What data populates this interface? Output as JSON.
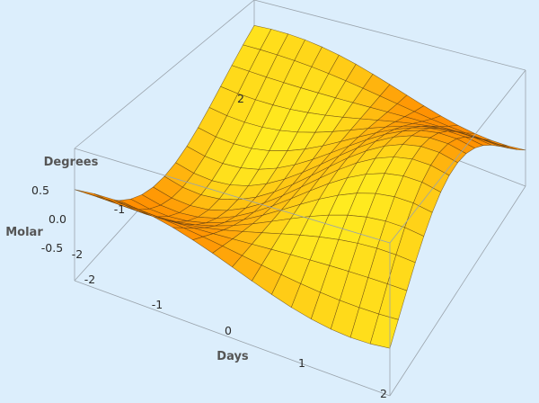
{
  "chart_data": {
    "type": "surface3d",
    "function": "z = sin(x) * cos(y)",
    "xlabel": "Days",
    "ylabel": "Degrees",
    "zlabel": "Molar",
    "x_range": [
      -2,
      2
    ],
    "y_range": [
      -2,
      2
    ],
    "z_range": [
      -1,
      1
    ],
    "x_ticks": [
      "-2",
      "-1",
      "0",
      "1",
      "2"
    ],
    "y_ticks": [
      "-2",
      "-1",
      "2"
    ],
    "z_ticks": [
      "0.5",
      "0.0",
      "-0.5"
    ],
    "mesh": 16,
    "colors": {
      "background": "#dceefc",
      "surface_high": "#ffec20",
      "surface_low": "#ff8a00",
      "mesh": "#5a3a10",
      "box": "#9aa3ab"
    }
  }
}
